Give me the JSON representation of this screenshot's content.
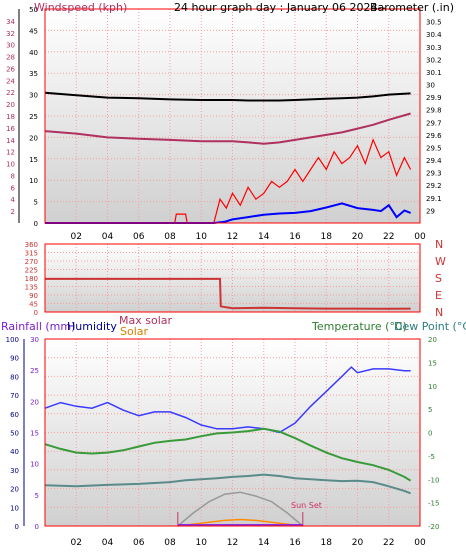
{
  "header": {
    "windspeed_label": "Windspeed (kph)",
    "title": "24 hour graph day : January 06 2024--",
    "barometer_label": "Barometer (.in)"
  },
  "middle": {
    "direction_labels": [
      "N",
      "W",
      "S",
      "E",
      "N"
    ]
  },
  "bottom": {
    "rainfall_label": "Rainfall (mm)",
    "humidity_label": "Humidity",
    "max_solar_label": "Max solar",
    "solar_label": "Solar",
    "temperature_label": "Temperature (°C)",
    "dewpoint_label": "Dew Point (°C)",
    "sunset_label": "Sun Set"
  },
  "colors": {
    "windspeed": "#ff0000",
    "wind_avg": "#0000ff",
    "barometer": "#000000",
    "barometer_axis": "#b03060",
    "direction": "#cc3333",
    "humidity": "#3a3aff",
    "temperature": "#3a9a3a",
    "dewpoint": "#5a8a8a",
    "solar": "#ff8c00",
    "max_solar": "#999999",
    "rain": "#8a2be2"
  },
  "chart_data": [
    {
      "id": "wind-barometer",
      "type": "line",
      "x_ticks": [
        "02",
        "04",
        "06",
        "08",
        "10",
        "12",
        "14",
        "16",
        "18",
        "20",
        "22",
        "00"
      ],
      "left_axis": {
        "label": "Windspeed (kph)",
        "ylim": [
          0,
          36
        ],
        "ticks": [
          0,
          2,
          4,
          6,
          8,
          10,
          12,
          14,
          16,
          18,
          20,
          22,
          24,
          26,
          28,
          30,
          32,
          34
        ]
      },
      "inner_axis": {
        "ylim": [
          0,
          50
        ],
        "ticks": [
          0,
          5,
          10,
          15,
          20,
          25,
          30,
          35,
          40,
          45,
          50
        ]
      },
      "right_axis": {
        "label": "Barometer (.in)",
        "ylim": [
          28.9,
          30.6
        ],
        "ticks": [
          29.0,
          29.1,
          29.2,
          29.3,
          29.4,
          29.5,
          29.6,
          29.7,
          29.8,
          29.9,
          30.0,
          30.1,
          30.2,
          30.3,
          30.4,
          30.5
        ]
      },
      "series": [
        {
          "key": "barometer",
          "axis": "right",
          "x": [
            0,
            2,
            4,
            6,
            8,
            10,
            11,
            12,
            13,
            14,
            15,
            16,
            17,
            18,
            19,
            20,
            21,
            22,
            23.4
          ],
          "y": [
            29.63,
            29.61,
            29.58,
            29.57,
            29.56,
            29.55,
            29.55,
            29.55,
            29.54,
            29.53,
            29.54,
            29.56,
            29.58,
            29.6,
            29.62,
            29.65,
            29.68,
            29.72,
            29.77
          ]
        },
        {
          "key": "max_wind",
          "axis": "left",
          "x": [
            0,
            2,
            4,
            6,
            8,
            10,
            11,
            12,
            13,
            14,
            15,
            16,
            17,
            18,
            19,
            20,
            21,
            22,
            23.4
          ],
          "y": [
            21.9,
            21.5,
            21.1,
            21.0,
            20.8,
            20.7,
            20.7,
            20.7,
            20.6,
            20.6,
            20.6,
            20.7,
            20.8,
            20.9,
            21.0,
            21.1,
            21.3,
            21.6,
            21.8
          ]
        },
        {
          "key": "wind_avg",
          "axis": "left",
          "x": [
            0,
            10.8,
            11.5,
            12,
            13,
            14,
            15,
            16,
            17,
            18,
            19,
            20,
            21,
            21.5,
            22,
            22.5,
            23,
            23.4
          ],
          "y": [
            0,
            0,
            0.2,
            0.6,
            1.0,
            1.4,
            1.6,
            1.7,
            2.0,
            2.6,
            3.3,
            2.5,
            2.2,
            2.0,
            3.0,
            1.0,
            2.1,
            1.7
          ]
        },
        {
          "key": "windspeed",
          "axis": "left",
          "x": [
            0,
            8.3,
            8.4,
            9,
            9.1,
            10.8,
            11.2,
            11.6,
            12,
            12.5,
            13,
            13.5,
            14,
            14.5,
            15,
            15.5,
            16,
            16.5,
            17,
            17.5,
            18,
            18.5,
            19,
            19.5,
            20,
            20.5,
            21,
            21.5,
            22,
            22.5,
            23,
            23.4
          ],
          "y": [
            0,
            0,
            1.5,
            1.5,
            0,
            0,
            4.0,
            2.5,
            5.0,
            3.0,
            6.0,
            4.0,
            5.0,
            7.0,
            6.0,
            7.0,
            9.0,
            7.0,
            9.0,
            11.0,
            9.0,
            12.0,
            10.0,
            11.0,
            13.0,
            10.0,
            14.0,
            11.0,
            12.0,
            8.0,
            11.0,
            9.0
          ]
        }
      ]
    },
    {
      "id": "wind-direction",
      "type": "line",
      "y_ticks": [
        0,
        45,
        90,
        135,
        180,
        225,
        270,
        315,
        360
      ],
      "right_labels": [
        "N",
        "W",
        "S",
        "E",
        "N"
      ],
      "ylim": [
        0,
        360
      ],
      "series": [
        {
          "key": "direction",
          "x": [
            0,
            11.2,
            11.25,
            11.6,
            12,
            14,
            16,
            18,
            20,
            22,
            23.4
          ],
          "y": [
            175,
            175,
            30,
            25,
            20,
            22,
            20,
            18,
            18,
            17,
            18
          ]
        }
      ]
    },
    {
      "id": "rain-humidity-temp-solar",
      "type": "line",
      "x_ticks": [
        "02",
        "04",
        "06",
        "08",
        "10",
        "12",
        "14",
        "16",
        "18",
        "20",
        "22",
        "00"
      ],
      "rain_axis": {
        "label": "Rainfall (mm)",
        "ticks": [
          0,
          5,
          10,
          15,
          20,
          25,
          30
        ]
      },
      "humidity_axis": {
        "label": "Humidity",
        "ylim": [
          0,
          100
        ],
        "ticks": [
          0,
          10,
          20,
          30,
          40,
          50,
          60,
          70,
          80,
          90,
          100
        ]
      },
      "temp_axis": {
        "label": "Temperature (°C)",
        "ylim": [
          -20,
          20
        ],
        "ticks": [
          -20,
          -15,
          -10,
          -5,
          0,
          5,
          10,
          15,
          20
        ]
      },
      "series": [
        {
          "key": "humidity",
          "axis": "humidity",
          "x": [
            0,
            1,
            2,
            3,
            4,
            5,
            6,
            7,
            8,
            9,
            10,
            11,
            12,
            13,
            14,
            15,
            16,
            17,
            18,
            19,
            19.6,
            20,
            21,
            22,
            23,
            23.4
          ],
          "y": [
            63,
            66,
            64,
            63,
            66,
            62,
            59,
            61,
            61,
            58,
            54,
            52,
            52,
            53,
            52,
            50,
            55,
            64,
            72,
            80,
            85,
            82,
            84,
            84,
            83,
            83
          ]
        },
        {
          "key": "temperature",
          "axis": "temp",
          "x": [
            0,
            1,
            2,
            3,
            4,
            5,
            6,
            7,
            8,
            9,
            10,
            11,
            12,
            13,
            14,
            15,
            16,
            17,
            18,
            19,
            20,
            21,
            22,
            23,
            23.4
          ],
          "y": [
            -2.5,
            -3.5,
            -4.3,
            -4.5,
            -4.3,
            -3.8,
            -3.0,
            -2.2,
            -1.8,
            -1.5,
            -0.8,
            -0.2,
            0.0,
            0.3,
            0.8,
            0.2,
            -1.2,
            -2.8,
            -4.3,
            -5.5,
            -6.3,
            -7.0,
            -8.0,
            -9.5,
            -10.3
          ]
        },
        {
          "key": "dewpoint",
          "axis": "temp",
          "x": [
            0,
            2,
            4,
            6,
            8,
            9,
            10,
            11,
            12,
            13,
            14,
            15,
            16,
            17,
            18,
            19,
            20,
            21,
            22,
            23,
            23.4
          ],
          "y": [
            -11.3,
            -11.5,
            -11.2,
            -11.0,
            -10.6,
            -10.2,
            -10.0,
            -9.8,
            -9.5,
            -9.3,
            -9.0,
            -9.3,
            -9.8,
            -10.0,
            -10.2,
            -10.4,
            -10.3,
            -10.6,
            -11.5,
            -12.5,
            -13.0
          ]
        },
        {
          "key": "max_solar",
          "axis": "humidity",
          "x": [
            8.5,
            9.5,
            10.5,
            11.5,
            12.5,
            13.5,
            14.5,
            15.5,
            16.5
          ],
          "y": [
            0,
            7,
            13,
            17,
            18,
            16,
            13,
            7,
            0
          ]
        },
        {
          "key": "solar",
          "axis": "humidity",
          "x": [
            8.5,
            9.5,
            10.5,
            11.5,
            12.5,
            13.5,
            14.5,
            15.5,
            16.5
          ],
          "y": [
            0,
            1,
            2,
            3,
            3.5,
            3,
            2,
            1,
            0
          ]
        }
      ]
    }
  ]
}
